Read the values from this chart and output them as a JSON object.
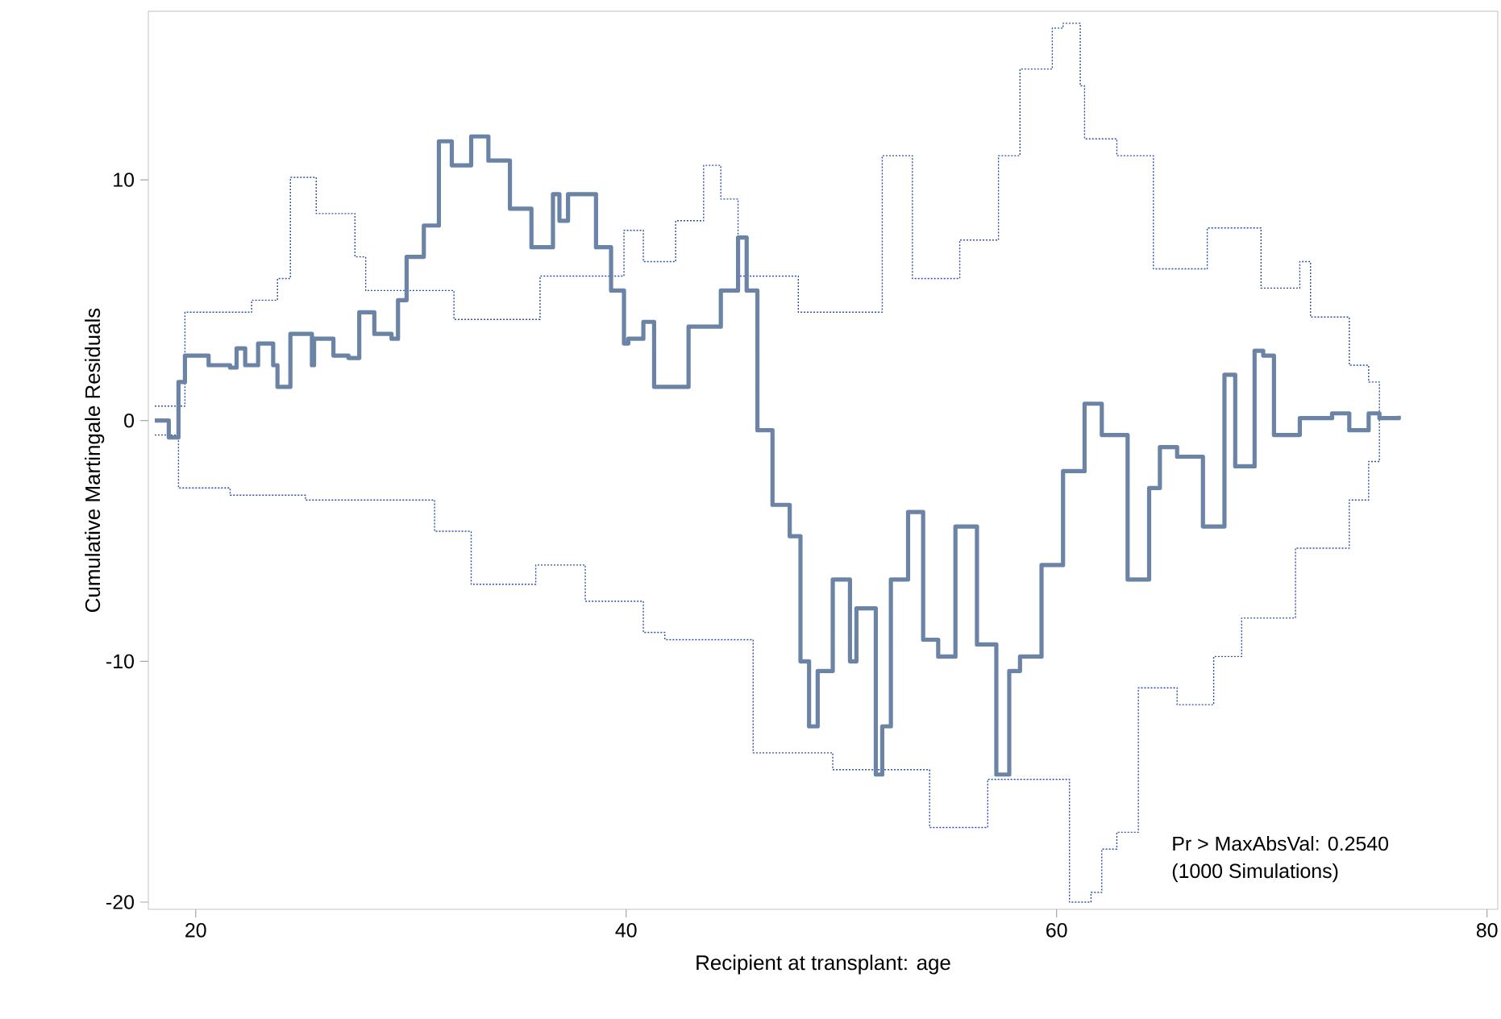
{
  "chart_data": {
    "type": "step",
    "xlabel": "Recipient at transplant: age",
    "ylabel": "Cumulative Martingale Residuals",
    "xlim": [
      17.8,
      80.5
    ],
    "ylim": [
      -20.3,
      17
    ],
    "xticks": [
      20,
      40,
      60,
      80
    ],
    "yticks": [
      -20,
      -10,
      0,
      10
    ],
    "marker": "none",
    "grid": false,
    "annotations": [
      "Pr > MaxAbsVal: 0.2540",
      "(1000 Simulations)"
    ],
    "series": [
      {
        "color": "#2b4fa8",
        "line_style": "dotted",
        "x": [
          18.1,
          19.5,
          22.6,
          23.8,
          24.4,
          25.6,
          27.4,
          27.9,
          32.0,
          36.0,
          39.9,
          40.8,
          42.3,
          43.6,
          44.4,
          45.2,
          48.0,
          51.9,
          53.3,
          55.5,
          57.3,
          58.3,
          59.8,
          60.3,
          61.1,
          61.3,
          62.8,
          64.5,
          67.0,
          69.5,
          71.3,
          71.8,
          73.6,
          74.5,
          75.0
        ],
        "values": [
          0.6,
          4.5,
          5.0,
          5.9,
          10.1,
          8.6,
          6.8,
          5.4,
          4.2,
          6.0,
          7.9,
          6.6,
          8.3,
          10.6,
          9.2,
          6.0,
          4.5,
          11.0,
          5.9,
          7.5,
          11.0,
          14.6,
          16.3,
          16.5,
          13.9,
          11.7,
          11.0,
          6.3,
          8.0,
          5.5,
          6.6,
          4.3,
          2.3,
          1.6,
          0.3
        ]
      },
      {
        "color": "#2b4fa8",
        "line_style": "dotted",
        "x": [
          18.1,
          19.2,
          21.6,
          25.1,
          31.1,
          32.8,
          35.8,
          38.1,
          40.6,
          40.8,
          41.8,
          45.9,
          49.6,
          54.1,
          56.8,
          60.6,
          61.6,
          62.1,
          62.8,
          63.8,
          65.6,
          67.3,
          68.6,
          71.1,
          73.6,
          74.5,
          75.0
        ],
        "values": [
          -0.6,
          -2.8,
          -3.1,
          -3.3,
          -4.6,
          -6.8,
          -6.0,
          -7.5,
          -7.5,
          -8.8,
          -9.1,
          -13.8,
          -14.5,
          -16.9,
          -14.9,
          -20.0,
          -19.6,
          -17.8,
          -17.1,
          -11.1,
          -11.8,
          -9.8,
          -8.2,
          -5.3,
          -3.3,
          -1.7,
          0.1
        ]
      },
      {
        "color": "#6b84a6",
        "line_style": "solid",
        "x": [
          18.1,
          18.75,
          19.2,
          19.5,
          20.6,
          21.6,
          21.9,
          22.3,
          22.9,
          23.6,
          23.8,
          24.4,
          25.4,
          25.5,
          26.4,
          27.1,
          27.6,
          28.3,
          29.1,
          29.4,
          29.8,
          30.6,
          31.3,
          31.9,
          32.8,
          33.6,
          34.6,
          35.6,
          36.6,
          36.9,
          37.3,
          38.6,
          39.3,
          39.9,
          40.1,
          40.8,
          41.3,
          42.9,
          44.4,
          45.2,
          45.6,
          46.1,
          46.8,
          47.6,
          48.1,
          48.5,
          48.9,
          49.6,
          50.4,
          50.7,
          51.6,
          51.9,
          52.3,
          53.1,
          53.8,
          54.5,
          55.3,
          56.3,
          57.2,
          57.8,
          58.3,
          59.3,
          60.3,
          61.3,
          62.1,
          63.3,
          64.3,
          64.8,
          65.6,
          66.8,
          67.8,
          68.3,
          69.2,
          69.6,
          70.1,
          71.3,
          72.8,
          73.6,
          74.5,
          75.0,
          75.9
        ],
        "values": [
          0,
          -0.7,
          1.6,
          2.7,
          2.3,
          2.2,
          3.0,
          2.3,
          3.2,
          2.3,
          1.4,
          3.6,
          2.3,
          3.4,
          2.7,
          2.6,
          4.5,
          3.6,
          3.4,
          5.0,
          6.8,
          8.1,
          11.6,
          10.6,
          11.8,
          10.8,
          8.8,
          7.2,
          9.4,
          8.3,
          9.4,
          7.2,
          5.4,
          3.2,
          3.4,
          4.1,
          1.4,
          3.9,
          5.4,
          7.6,
          5.4,
          -0.4,
          -3.5,
          -4.8,
          -10.0,
          -12.7,
          -10.4,
          -6.6,
          -10.0,
          -7.8,
          -14.7,
          -12.7,
          -6.6,
          -3.8,
          -9.1,
          -9.8,
          -4.4,
          -9.3,
          -14.7,
          -10.4,
          -9.8,
          -6.0,
          -2.1,
          0.7,
          -0.6,
          -6.6,
          -2.8,
          -1.1,
          -1.5,
          -4.4,
          1.9,
          -1.9,
          2.9,
          2.7,
          -0.6,
          0.1,
          0.3,
          -0.4,
          0.3,
          0.1,
          0.2
        ]
      }
    ]
  }
}
